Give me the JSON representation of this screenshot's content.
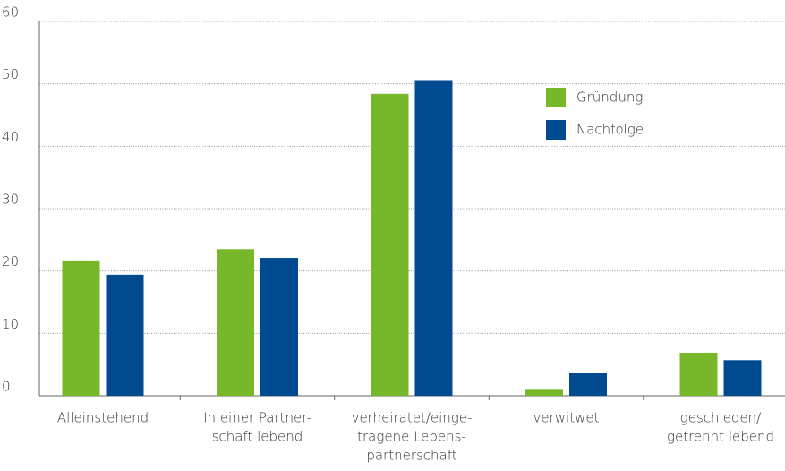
{
  "chart_data": {
    "type": "bar",
    "categories": [
      [
        "Alleinstehend"
      ],
      [
        "In einer Partner-",
        "schaft lebend"
      ],
      [
        "verheiratet/einge-",
        "tragene Lebens-",
        "partnerschaft"
      ],
      [
        "verwitwet"
      ],
      [
        "geschieden/",
        "getrennt lebend"
      ]
    ],
    "series": [
      {
        "name": "Gründung",
        "color": "#76b82a",
        "values": [
          21.7,
          23.5,
          48.4,
          1.1,
          6.9
        ]
      },
      {
        "name": "Nachfolge",
        "color": "#004a8f",
        "values": [
          19.4,
          22.1,
          50.6,
          3.7,
          5.7
        ]
      }
    ],
    "ylim": [
      0,
      60
    ],
    "yticks": [
      0,
      10,
      20,
      30,
      40,
      50,
      60
    ],
    "grid": true,
    "legend": "upper right"
  }
}
